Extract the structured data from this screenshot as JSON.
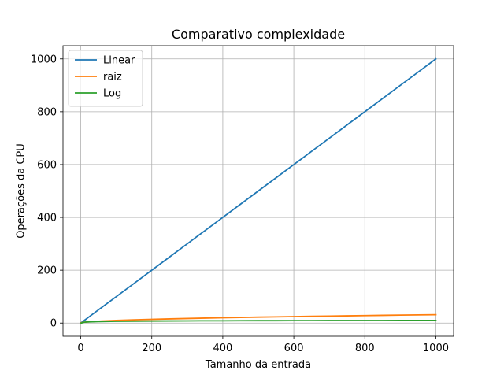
{
  "chart_data": {
    "type": "line",
    "title": "Comparativo complexidade",
    "xlabel": "Tamanho da entrada",
    "ylabel": "Operações da CPU",
    "xlim": [
      -50,
      1050
    ],
    "ylim": [
      -50,
      1050
    ],
    "xticks": [
      0,
      200,
      400,
      600,
      800,
      1000
    ],
    "yticks": [
      0,
      200,
      400,
      600,
      800,
      1000
    ],
    "grid": true,
    "legend_position": "upper-left",
    "x": [
      1,
      10,
      25,
      50,
      100,
      150,
      200,
      250,
      300,
      350,
      400,
      450,
      500,
      550,
      600,
      650,
      700,
      750,
      800,
      850,
      900,
      950,
      1000
    ],
    "series": [
      {
        "name": "Linear",
        "color": "#1f77b4",
        "values": [
          1,
          10,
          25,
          50,
          100,
          150,
          200,
          250,
          300,
          350,
          400,
          450,
          500,
          550,
          600,
          650,
          700,
          750,
          800,
          850,
          900,
          950,
          1000
        ]
      },
      {
        "name": "raiz",
        "color": "#ff7f0e",
        "values": [
          1.0,
          3.2,
          5.0,
          7.1,
          10.0,
          12.2,
          14.1,
          15.8,
          17.3,
          18.7,
          20.0,
          21.2,
          22.4,
          23.5,
          24.5,
          25.5,
          26.5,
          27.4,
          28.3,
          29.2,
          30.0,
          30.8,
          31.6
        ]
      },
      {
        "name": "Log",
        "color": "#2ca02c",
        "values": [
          0.0,
          3.3,
          4.6,
          5.6,
          6.6,
          7.2,
          7.6,
          8.0,
          8.2,
          8.5,
          8.6,
          8.8,
          9.0,
          9.1,
          9.2,
          9.3,
          9.5,
          9.6,
          9.6,
          9.7,
          9.8,
          9.9,
          10.0
        ]
      }
    ]
  }
}
